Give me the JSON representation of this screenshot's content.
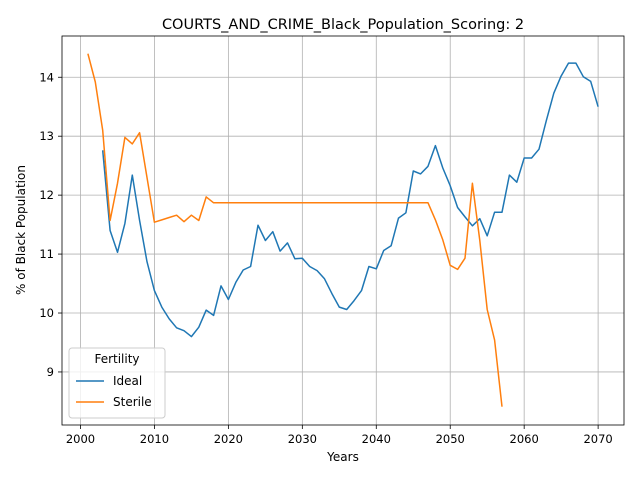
{
  "chart_data": {
    "type": "line",
    "title": "COURTS_AND_CRIME_Black_Population_Scoring: 2",
    "xlabel": "Years",
    "ylabel": "% of Black Population",
    "xlim": [
      1997.5,
      2073.5
    ],
    "ylim": [
      8.1,
      14.7
    ],
    "x_ticks": [
      2000,
      2010,
      2020,
      2030,
      2040,
      2050,
      2060,
      2070
    ],
    "y_ticks": [
      9,
      10,
      11,
      12,
      13,
      14
    ],
    "grid": true,
    "legend": {
      "title": "Fertility",
      "placement": "lower-left"
    },
    "series": [
      {
        "name": "Ideal",
        "color": "#1f77b4",
        "x": [
          2003,
          2004,
          2005,
          2006,
          2007,
          2008,
          2009,
          2010,
          2011,
          2012,
          2013,
          2014,
          2015,
          2016,
          2017,
          2018,
          2019,
          2020,
          2021,
          2022,
          2023,
          2024,
          2025,
          2026,
          2027,
          2028,
          2029,
          2030,
          2031,
          2032,
          2033,
          2034,
          2035,
          2036,
          2037,
          2038,
          2039,
          2040,
          2041,
          2042,
          2043,
          2044,
          2045,
          2046,
          2047,
          2048,
          2049,
          2050,
          2051,
          2052,
          2053,
          2054,
          2055,
          2056,
          2057,
          2058,
          2059,
          2060,
          2061,
          2062,
          2063,
          2064,
          2065,
          2066,
          2067,
          2068,
          2069,
          2070
        ],
        "y": [
          12.76,
          11.4,
          11.03,
          11.52,
          12.34,
          11.57,
          10.87,
          10.38,
          10.1,
          9.9,
          9.75,
          9.7,
          9.6,
          9.76,
          10.05,
          9.96,
          10.46,
          10.23,
          10.52,
          10.73,
          10.79,
          11.49,
          11.23,
          11.38,
          11.05,
          11.19,
          10.92,
          10.93,
          10.79,
          10.72,
          10.58,
          10.33,
          10.1,
          10.06,
          10.21,
          10.38,
          10.79,
          10.75,
          11.06,
          11.14,
          11.61,
          11.7,
          12.41,
          12.36,
          12.49,
          12.84,
          12.46,
          12.16,
          11.79,
          11.63,
          11.48,
          11.6,
          11.31,
          11.71,
          11.71,
          12.34,
          12.22,
          12.63,
          12.63,
          12.78,
          13.27,
          13.73,
          14.02,
          14.24,
          14.24,
          14.01,
          13.93,
          13.5
        ]
      },
      {
        "name": "Sterile",
        "color": "#ff7f0e",
        "x": [
          2001,
          2002,
          2003,
          2004,
          2005,
          2006,
          2007,
          2008,
          2009,
          2010,
          2011,
          2012,
          2013,
          2014,
          2015,
          2016,
          2017,
          2018,
          2019,
          2020,
          2021,
          2022,
          2023,
          2024,
          2025,
          2026,
          2027,
          2028,
          2029,
          2030,
          2031,
          2032,
          2033,
          2034,
          2035,
          2036,
          2037,
          2038,
          2039,
          2040,
          2041,
          2042,
          2043,
          2044,
          2045,
          2046,
          2047,
          2048,
          2049,
          2050,
          2051,
          2052,
          2053,
          2054,
          2055,
          2056,
          2057
        ],
        "y": [
          14.4,
          13.92,
          13.1,
          11.57,
          12.2,
          12.98,
          12.87,
          13.06,
          12.3,
          11.54,
          11.58,
          11.62,
          11.66,
          11.55,
          11.66,
          11.57,
          11.97,
          11.87,
          11.87,
          11.87,
          11.87,
          11.87,
          11.87,
          11.87,
          11.87,
          11.87,
          11.87,
          11.87,
          11.87,
          11.87,
          11.87,
          11.87,
          11.87,
          11.87,
          11.87,
          11.87,
          11.87,
          11.87,
          11.87,
          11.87,
          11.87,
          11.87,
          11.87,
          11.87,
          11.87,
          11.87,
          11.87,
          11.58,
          11.24,
          10.81,
          10.74,
          10.93,
          12.2,
          11.23,
          10.06,
          9.54,
          8.41
        ]
      }
    ]
  }
}
